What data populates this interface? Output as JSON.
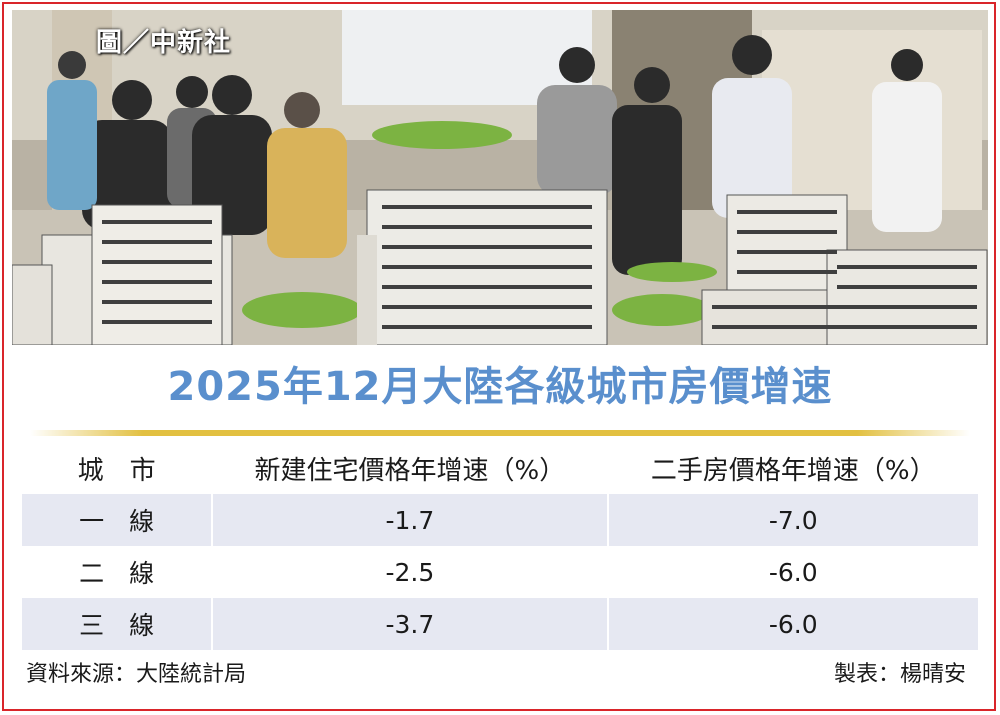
{
  "photo": {
    "credit": "圖／中新社",
    "description_icon": "photo-scene"
  },
  "title": "2025年12月大陸各級城市房價增速",
  "table": {
    "headers": [
      "城　市",
      "新建住宅價格年增速（%）",
      "二手房價格年增速（%）"
    ],
    "rows": [
      {
        "city": "一　線",
        "new": "-1.7",
        "used": "-7.0"
      },
      {
        "city": "二　線",
        "new": "-2.5",
        "used": "-6.0"
      },
      {
        "city": "三　線",
        "new": "-3.7",
        "used": "-6.0"
      }
    ]
  },
  "footer": {
    "source": "資料來源：大陸統計局",
    "author": "製表：楊晴安"
  },
  "colors": {
    "title": "#5a8fcd",
    "frame": "#d9252a",
    "row_stripe": "#e6e8f2",
    "gold_rule": "#e2c041"
  }
}
